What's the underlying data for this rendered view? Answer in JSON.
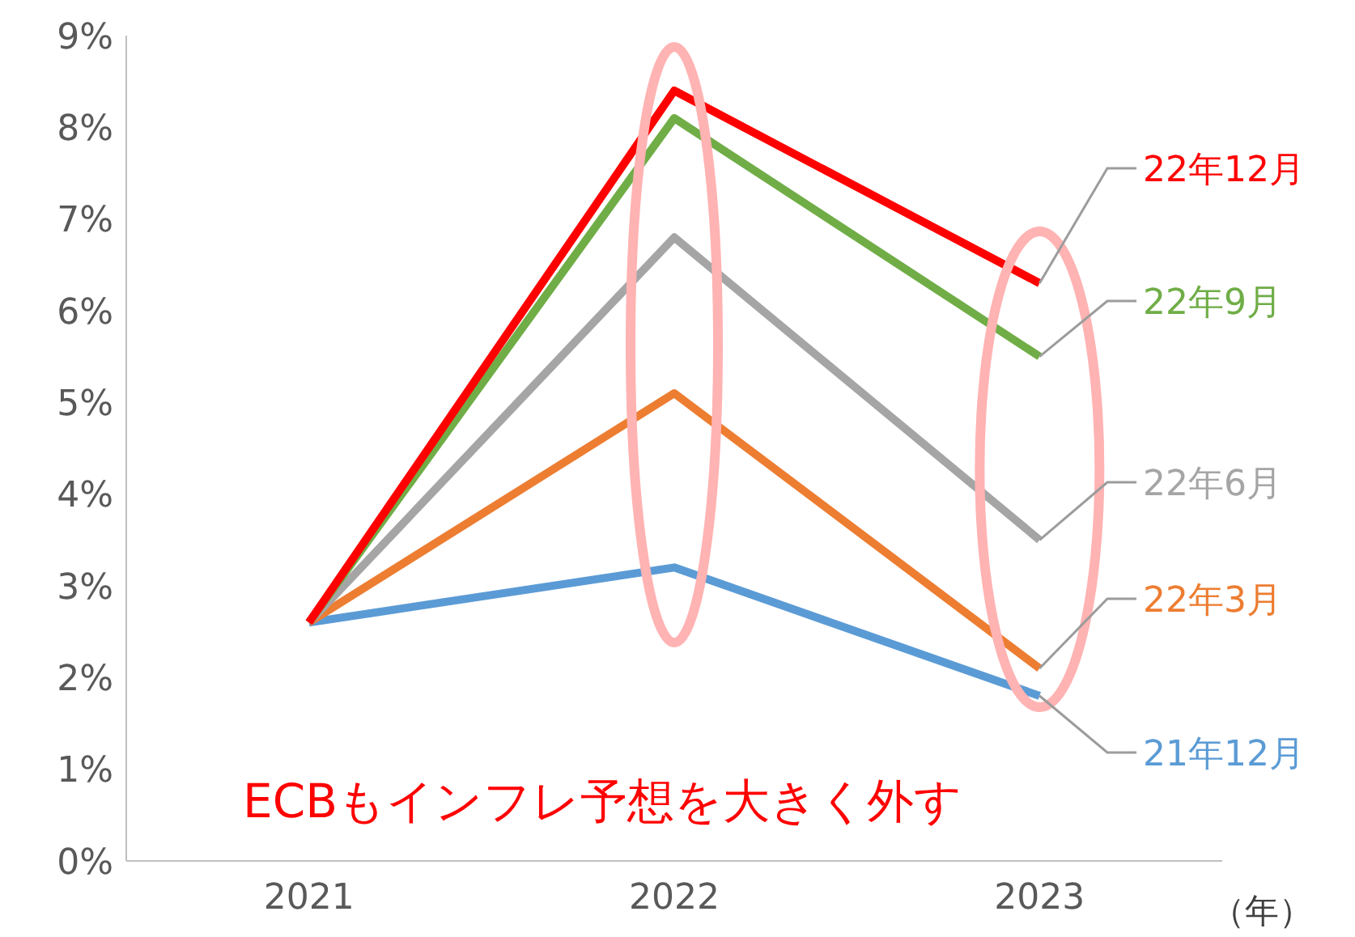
{
  "chart_data": {
    "type": "line",
    "categories": [
      "2021",
      "2022",
      "2023"
    ],
    "xlabel": "（年）",
    "annotations": [
      "ECBもインフレ予想を大きく外す"
    ],
    "series": [
      {
        "name": "21年12月",
        "color": "#5b9bd5",
        "values": [
          2.6,
          3.2,
          1.8
        ]
      },
      {
        "name": "22年3月",
        "color": "#ed7d31",
        "values": [
          2.6,
          5.1,
          2.1
        ]
      },
      {
        "name": "22年6月",
        "color": "#a5a5a5",
        "values": [
          2.6,
          6.8,
          3.5
        ]
      },
      {
        "name": "22年9月",
        "color": "#70ad47",
        "values": [
          2.6,
          8.1,
          5.5
        ]
      },
      {
        "name": "22年12月",
        "color": "#ff0000",
        "values": [
          2.6,
          8.4,
          6.3
        ]
      }
    ],
    "ylim": [
      0,
      9
    ],
    "yticks": [
      {
        "value": 0,
        "label": "0%"
      },
      {
        "value": 1,
        "label": "1%"
      },
      {
        "value": 2,
        "label": "2%"
      },
      {
        "value": 3,
        "label": "3%"
      },
      {
        "value": 4,
        "label": "4%"
      },
      {
        "value": 5,
        "label": "5%"
      },
      {
        "value": 6,
        "label": "6%"
      },
      {
        "value": 7,
        "label": "7%"
      },
      {
        "value": 8,
        "label": "8%"
      },
      {
        "value": 9,
        "label": "9%"
      }
    ],
    "grid": false,
    "legend": false,
    "marker": "none",
    "line_style": "solid"
  }
}
